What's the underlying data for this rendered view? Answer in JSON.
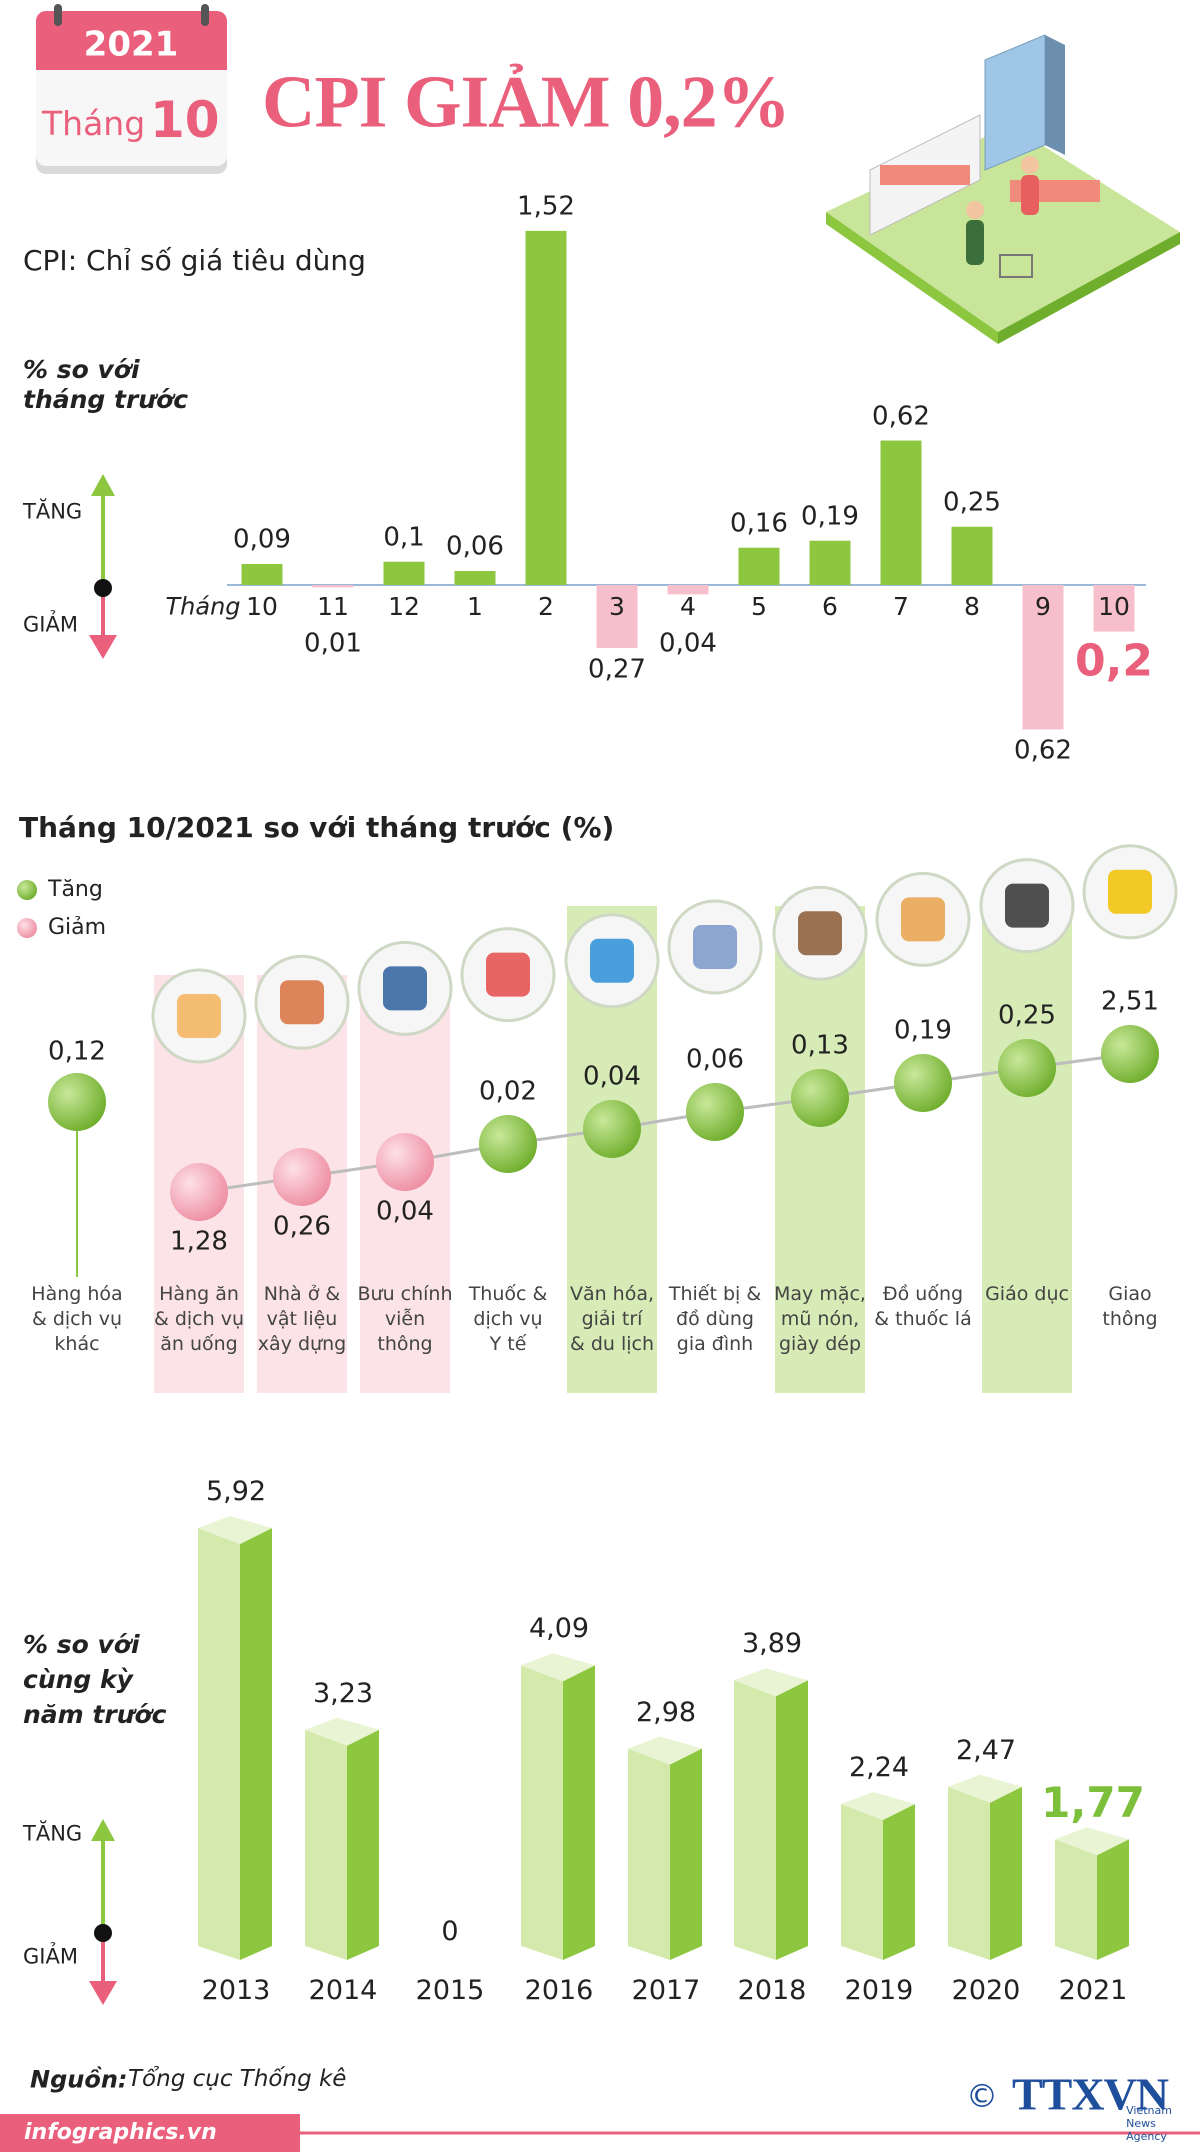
{
  "header": {
    "year": "2021",
    "month_label": "Tháng",
    "month": "10",
    "title": "CPI GIẢM 0,2%"
  },
  "chart_data": [
    {
      "type": "bar",
      "subtitle": "CPI: Chỉ số giá tiêu dùng",
      "y_label": "% so với\ntháng trước",
      "up_label": "TĂNG",
      "down_label": "GIẢM",
      "x_label": "Tháng",
      "categories": [
        "10",
        "11",
        "12",
        "1",
        "2",
        "3",
        "4",
        "5",
        "6",
        "7",
        "8",
        "9",
        "10"
      ],
      "values": [
        0.09,
        -0.01,
        0.1,
        0.06,
        1.52,
        -0.27,
        -0.04,
        0.16,
        0.19,
        0.62,
        0.25,
        -0.62,
        -0.2
      ],
      "value_labels": [
        "0,09",
        "0,01",
        "0,1",
        "0,06",
        "1,52",
        "0,27",
        "0,04",
        "0,16",
        "0,19",
        "0,62",
        "0,25",
        "0,62",
        "0,2"
      ],
      "colors": {
        "up": "#8dc63f",
        "down": "#f6bfcb"
      }
    },
    {
      "type": "dot",
      "title": "Tháng 10/2021 so với tháng trước (%)",
      "legend": [
        {
          "name": "Tăng",
          "color": "#8dc63f"
        },
        {
          "name": "Giảm",
          "color": "#f29fb0"
        }
      ],
      "categories": [
        "Hàng hóa\n& dịch vụ\nkhác",
        "Hàng ăn\n& dịch vụ\năn uống",
        "Nhà ở &\nvật liệu\nxây dựng",
        "Bưu chính\nviễn\nthông",
        "Thuốc &\ndịch vụ\nY tế",
        "Văn hóa,\ngiải trí\n& du lịch",
        "Thiết bị &\nđồ dùng\ngia đình",
        "May mặc,\nmũ nón,\ngiày dép",
        "Đồ uống\n& thuốc lá",
        "Giáo dục",
        "Giao\nthông"
      ],
      "values": [
        0.12,
        -1.28,
        -0.26,
        -0.04,
        0.02,
        0.04,
        0.06,
        0.13,
        0.19,
        0.25,
        2.51
      ],
      "value_labels": [
        "0,12",
        "1,28",
        "0,26",
        "0,04",
        "0,02",
        "0,04",
        "0,06",
        "0,13",
        "0,19",
        "0,25",
        "2,51"
      ]
    },
    {
      "type": "bar3d",
      "y_label": "% so với\ncùng kỳ\nnăm trước",
      "up_label": "TĂNG",
      "down_label": "GIẢM",
      "categories": [
        "2013",
        "2014",
        "2015",
        "2016",
        "2017",
        "2018",
        "2019",
        "2020",
        "2021"
      ],
      "values": [
        5.92,
        3.23,
        0,
        4.09,
        2.98,
        3.89,
        2.24,
        2.47,
        1.77
      ],
      "value_labels": [
        "5,92",
        "3,23",
        "0",
        "4,09",
        "2,98",
        "3,89",
        "2,24",
        "2,47",
        "1,77"
      ],
      "color": "#8dc63f"
    }
  ],
  "footer": {
    "source_label": "Nguồn:",
    "source": "Tổng cục Thống kê",
    "site": "infographics.vn",
    "copyright": "©",
    "logo": "TTXVN",
    "logo_sub": "Vietnam News Agency"
  }
}
